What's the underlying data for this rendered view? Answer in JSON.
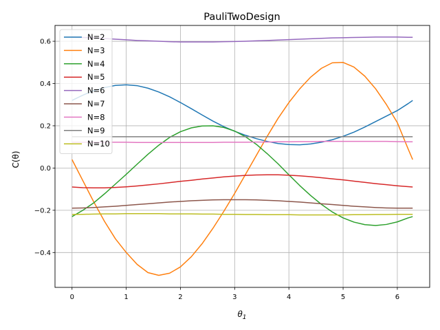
{
  "chart_data": {
    "type": "line",
    "title": "PauliTwoDesign",
    "xlabel": "θ",
    "xlabel_sub": "1",
    "ylabel": "C(θ)",
    "xlim": [
      -0.314,
      6.597
    ],
    "ylim": [
      -0.565,
      0.675
    ],
    "xticks": [
      0,
      1,
      2,
      3,
      4,
      5,
      6
    ],
    "yticks": [
      -0.4,
      -0.2,
      0.0,
      0.2,
      0.4,
      0.6
    ],
    "ytick_labels": [
      "−0.4",
      "−0.2",
      "0.0",
      "0.2",
      "0.4",
      "0.6"
    ],
    "grid": true,
    "legend_position": "top-left",
    "x": [
      0,
      0.2,
      0.4,
      0.6,
      0.8,
      1.0,
      1.2,
      1.4,
      1.6,
      1.8,
      2.0,
      2.2,
      2.4,
      2.6,
      2.8,
      3.0,
      3.2,
      3.4,
      3.6,
      3.8,
      4.0,
      4.2,
      4.4,
      4.6,
      4.8,
      5.0,
      5.2,
      5.4,
      5.6,
      5.8,
      6.0,
      6.2,
      6.283
    ],
    "series": [
      {
        "name": "N=2",
        "color": "#1f77b4",
        "values": [
          0.32,
          0.345,
          0.366,
          0.381,
          0.391,
          0.394,
          0.39,
          0.378,
          0.36,
          0.337,
          0.31,
          0.281,
          0.251,
          0.222,
          0.196,
          0.174,
          0.155,
          0.139,
          0.126,
          0.116,
          0.111,
          0.11,
          0.114,
          0.122,
          0.134,
          0.15,
          0.17,
          0.194,
          0.22,
          0.246,
          0.272,
          0.305,
          0.32
        ]
      },
      {
        "name": "N=3",
        "color": "#ff7f0e",
        "values": [
          0.04,
          -0.06,
          -0.16,
          -0.253,
          -0.335,
          -0.4,
          -0.456,
          -0.495,
          -0.508,
          -0.498,
          -0.468,
          -0.42,
          -0.358,
          -0.285,
          -0.205,
          -0.12,
          -0.03,
          0.06,
          0.15,
          0.235,
          0.31,
          0.375,
          0.43,
          0.472,
          0.498,
          0.5,
          0.478,
          0.435,
          0.375,
          0.3,
          0.215,
          0.09,
          0.04
        ]
      },
      {
        "name": "N=4",
        "color": "#2ca02c",
        "values": [
          -0.23,
          -0.2,
          -0.165,
          -0.122,
          -0.076,
          -0.03,
          0.018,
          0.065,
          0.108,
          0.145,
          0.172,
          0.19,
          0.199,
          0.2,
          0.192,
          0.175,
          0.148,
          0.112,
          0.068,
          0.02,
          -0.032,
          -0.083,
          -0.13,
          -0.172,
          -0.208,
          -0.236,
          -0.256,
          -0.268,
          -0.272,
          -0.267,
          -0.255,
          -0.236,
          -0.23
        ]
      },
      {
        "name": "N=5",
        "color": "#d62728",
        "values": [
          -0.09,
          -0.093,
          -0.094,
          -0.094,
          -0.092,
          -0.089,
          -0.085,
          -0.08,
          -0.075,
          -0.069,
          -0.063,
          -0.058,
          -0.052,
          -0.047,
          -0.042,
          -0.038,
          -0.035,
          -0.033,
          -0.032,
          -0.032,
          -0.034,
          -0.037,
          -0.041,
          -0.046,
          -0.051,
          -0.056,
          -0.062,
          -0.068,
          -0.074,
          -0.079,
          -0.084,
          -0.088,
          -0.09
        ]
      },
      {
        "name": "N=6",
        "color": "#9467bd",
        "values": [
          0.62,
          0.618,
          0.616,
          0.613,
          0.61,
          0.607,
          0.604,
          0.602,
          0.6,
          0.598,
          0.597,
          0.597,
          0.597,
          0.597,
          0.598,
          0.599,
          0.6,
          0.602,
          0.604,
          0.606,
          0.608,
          0.61,
          0.612,
          0.614,
          0.616,
          0.617,
          0.618,
          0.619,
          0.62,
          0.62,
          0.62,
          0.619,
          0.619
        ]
      },
      {
        "name": "N=7",
        "color": "#8c564b",
        "values": [
          -0.19,
          -0.189,
          -0.187,
          -0.184,
          -0.181,
          -0.177,
          -0.173,
          -0.169,
          -0.165,
          -0.161,
          -0.158,
          -0.155,
          -0.153,
          -0.151,
          -0.15,
          -0.15,
          -0.15,
          -0.151,
          -0.153,
          -0.155,
          -0.158,
          -0.161,
          -0.165,
          -0.169,
          -0.173,
          -0.177,
          -0.181,
          -0.184,
          -0.187,
          -0.189,
          -0.19,
          -0.19,
          -0.19
        ]
      },
      {
        "name": "N=8",
        "color": "#e377c2",
        "values": [
          0.122,
          0.122,
          0.122,
          0.122,
          0.122,
          0.122,
          0.121,
          0.121,
          0.121,
          0.121,
          0.121,
          0.121,
          0.121,
          0.121,
          0.122,
          0.122,
          0.122,
          0.123,
          0.123,
          0.124,
          0.124,
          0.125,
          0.125,
          0.126,
          0.126,
          0.126,
          0.126,
          0.126,
          0.126,
          0.126,
          0.125,
          0.124,
          0.124
        ]
      },
      {
        "name": "N=9",
        "color": "#7f7f7f",
        "values": [
          0.148,
          0.148,
          0.148,
          0.148,
          0.148,
          0.148,
          0.148,
          0.148,
          0.148,
          0.148,
          0.148,
          0.148,
          0.148,
          0.148,
          0.148,
          0.148,
          0.148,
          0.148,
          0.148,
          0.148,
          0.148,
          0.148,
          0.148,
          0.148,
          0.148,
          0.148,
          0.148,
          0.148,
          0.148,
          0.148,
          0.148,
          0.148,
          0.148
        ]
      },
      {
        "name": "N=10",
        "color": "#bcbd22",
        "values": [
          -0.22,
          -0.219,
          -0.218,
          -0.217,
          -0.217,
          -0.216,
          -0.216,
          -0.216,
          -0.216,
          -0.217,
          -0.217,
          -0.217,
          -0.218,
          -0.218,
          -0.219,
          -0.219,
          -0.22,
          -0.22,
          -0.221,
          -0.221,
          -0.221,
          -0.222,
          -0.222,
          -0.222,
          -0.222,
          -0.222,
          -0.221,
          -0.221,
          -0.22,
          -0.22,
          -0.219,
          -0.219,
          -0.219
        ]
      }
    ]
  }
}
